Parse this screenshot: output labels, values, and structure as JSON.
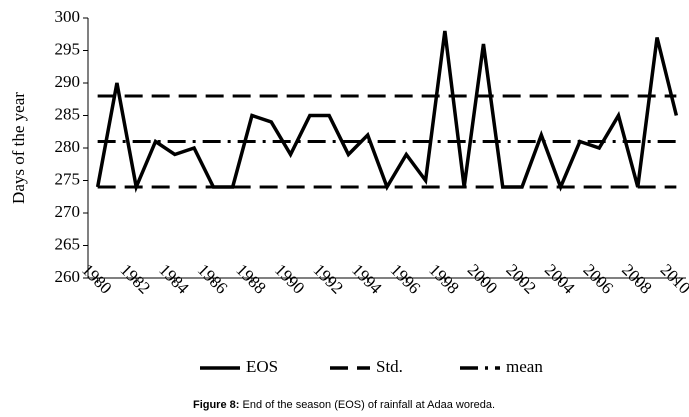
{
  "chart_data": {
    "type": "line",
    "y_label": "Days of the year",
    "x": [
      1980,
      1981,
      1982,
      1983,
      1984,
      1985,
      1986,
      1987,
      1988,
      1989,
      1990,
      1991,
      1992,
      1993,
      1994,
      1995,
      1996,
      1997,
      1998,
      1999,
      2000,
      2001,
      2002,
      2003,
      2004,
      2005,
      2006,
      2007,
      2008,
      2009,
      2010
    ],
    "xlim": [
      1979.5,
      2010.5
    ],
    "xticks": [
      1980,
      1982,
      1984,
      1986,
      1988,
      1990,
      1992,
      1994,
      1996,
      1998,
      2000,
      2002,
      2004,
      2006,
      2008,
      2010
    ],
    "ylim": [
      260,
      300
    ],
    "yticks": [
      260,
      265,
      270,
      275,
      280,
      285,
      290,
      295,
      300
    ],
    "legend": "bottom",
    "series": [
      {
        "name": "EOS",
        "color": "#000000",
        "dash": "solid",
        "values": [
          274,
          290,
          274,
          281,
          279,
          280,
          274,
          274,
          285,
          284,
          279,
          285,
          285,
          279,
          282,
          274,
          279,
          275,
          298,
          274,
          296,
          274,
          274,
          282,
          274,
          281,
          280,
          285,
          274,
          297,
          285
        ]
      },
      {
        "name": "Std.",
        "color": "#000000",
        "dash": "dashed",
        "values": [
          288,
          288,
          288,
          288,
          288,
          288,
          288,
          288,
          288,
          288,
          288,
          288,
          288,
          288,
          288,
          288,
          288,
          288,
          288,
          288,
          288,
          288,
          288,
          288,
          288,
          288,
          288,
          288,
          288,
          288,
          288
        ]
      },
      {
        "name": "Std.",
        "color": "#000000",
        "dash": "dashed",
        "values": [
          274,
          274,
          274,
          274,
          274,
          274,
          274,
          274,
          274,
          274,
          274,
          274,
          274,
          274,
          274,
          274,
          274,
          274,
          274,
          274,
          274,
          274,
          274,
          274,
          274,
          274,
          274,
          274,
          274,
          274,
          274
        ]
      },
      {
        "name": "mean",
        "color": "#000000",
        "dash": "dashdot",
        "values": [
          281,
          281,
          281,
          281,
          281,
          281,
          281,
          281,
          281,
          281,
          281,
          281,
          281,
          281,
          281,
          281,
          281,
          281,
          281,
          281,
          281,
          281,
          281,
          281,
          281,
          281,
          281,
          281,
          281,
          281,
          281
        ]
      }
    ]
  },
  "caption": {
    "label": "Figure 8:",
    "text": "End of the season (EOS) of rainfall at Adaa woreda."
  }
}
